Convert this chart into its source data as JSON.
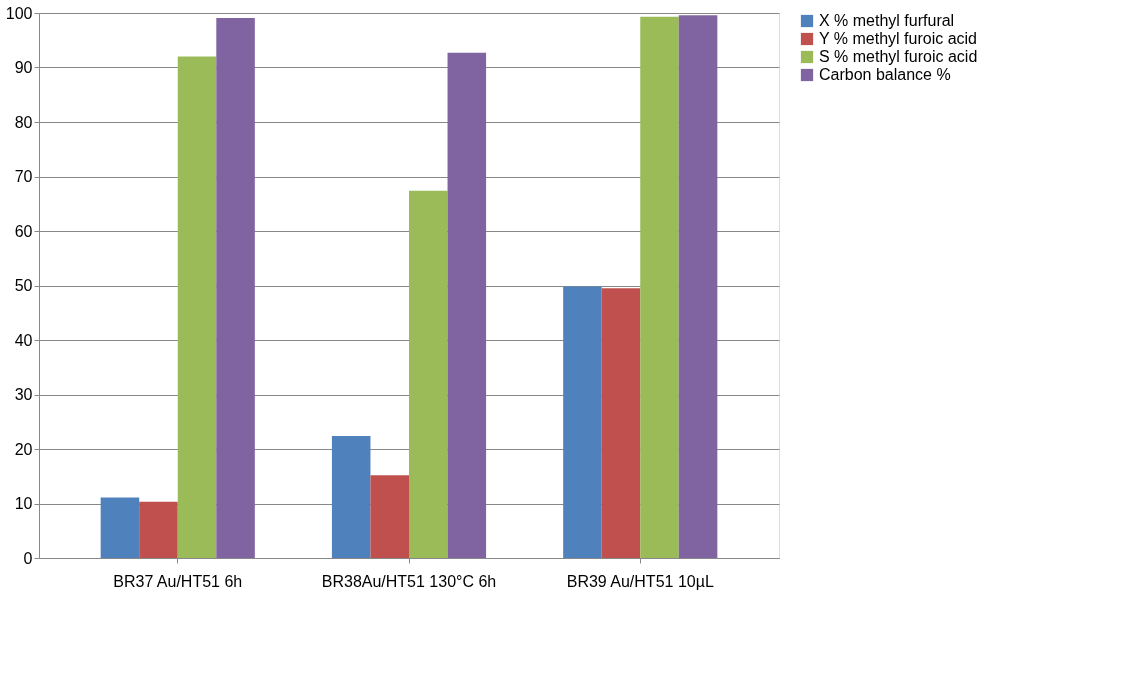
{
  "chart_data": {
    "type": "bar",
    "categories": [
      "BR37 Au/HT51 6h",
      "BR38Au/HT51 130°C 6h",
      "BR39 Au/HT51 10µL"
    ],
    "series": [
      {
        "name": "X % methyl furfural",
        "color": "#4f81bd",
        "values": [
          11.1,
          22.4,
          49.8
        ]
      },
      {
        "name": "Y % methyl furoic acid",
        "color": "#c0504d",
        "values": [
          10.3,
          15.2,
          49.5
        ]
      },
      {
        "name": "S % methyl furoic acid",
        "color": "#9bbb59",
        "values": [
          92.0,
          67.4,
          99.3
        ]
      },
      {
        "name": "Carbon balance %",
        "color": "#8064a2",
        "values": [
          99.1,
          92.7,
          99.6
        ]
      }
    ],
    "ylim": [
      0,
      100
    ],
    "yticks": [
      0,
      10,
      20,
      30,
      40,
      50,
      60,
      70,
      80,
      90,
      100
    ],
    "grid": "y",
    "legend": "right"
  }
}
